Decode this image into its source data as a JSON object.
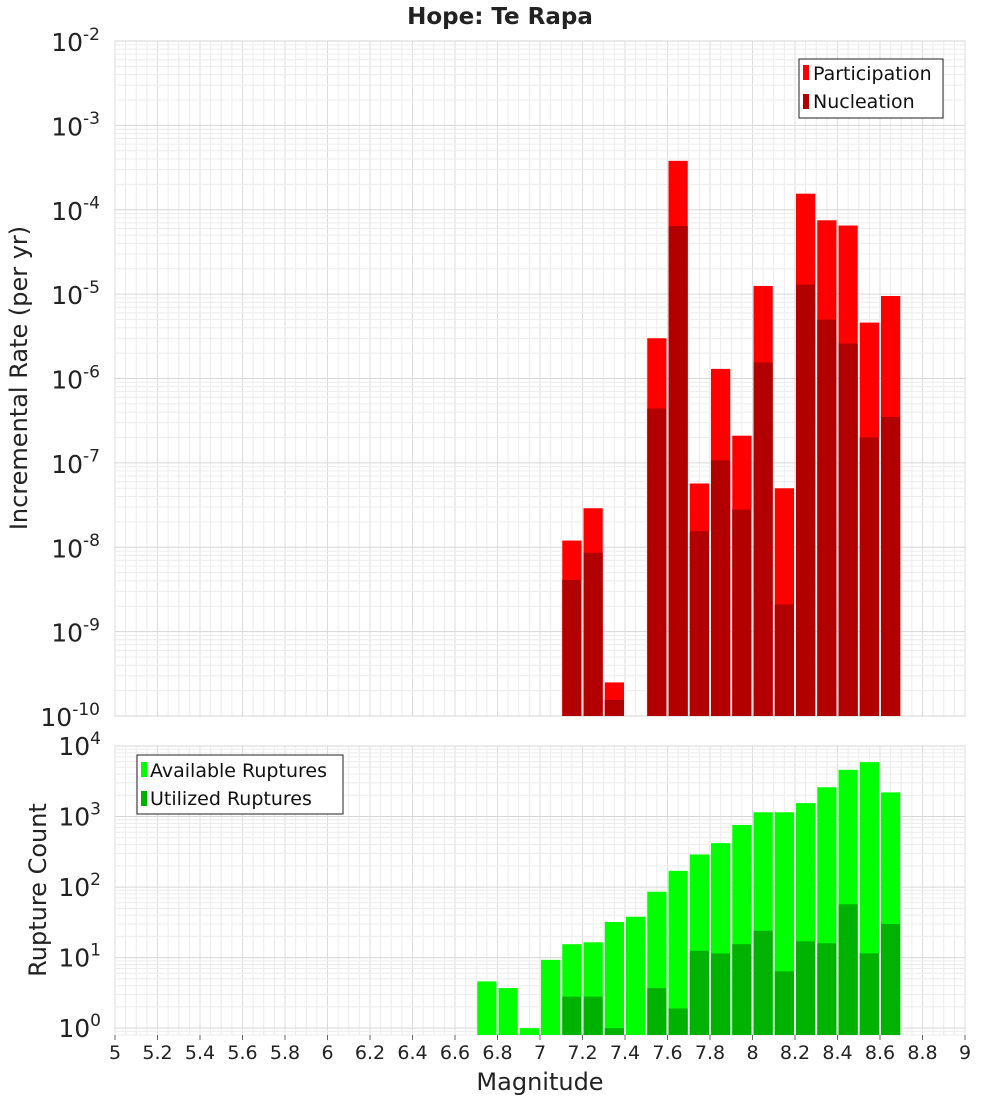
{
  "chart_data": [
    {
      "type": "bar",
      "title": "Hope: Te Rapa",
      "xlabel": "",
      "ylabel": "Incremental Rate (per yr)",
      "yscale": "log",
      "ylim": [
        1e-10,
        0.01
      ],
      "xlim": [
        5,
        9
      ],
      "grid": true,
      "legend_position": "top-right",
      "bar_width": 0.1,
      "y_tick_labels": [
        {
          "base": "10",
          "exp": "-10"
        },
        {
          "base": "10",
          "exp": "-9"
        },
        {
          "base": "10",
          "exp": "-8"
        },
        {
          "base": "10",
          "exp": "-7"
        },
        {
          "base": "10",
          "exp": "-6"
        },
        {
          "base": "10",
          "exp": "-5"
        },
        {
          "base": "10",
          "exp": "-4"
        },
        {
          "base": "10",
          "exp": "-3"
        },
        {
          "base": "10",
          "exp": "-2"
        }
      ],
      "series": [
        {
          "name": "Participation",
          "color": "#ff0000",
          "points": [
            [
              7.15,
              1.2e-08
            ],
            [
              7.25,
              2.9e-08
            ],
            [
              7.35,
              2.5e-10
            ],
            [
              7.55,
              3e-06
            ],
            [
              7.65,
              0.00038
            ],
            [
              7.75,
              5.7e-08
            ],
            [
              7.85,
              1.3e-06
            ],
            [
              7.95,
              2.1e-07
            ],
            [
              8.05,
              1.25e-05
            ],
            [
              8.15,
              5e-08
            ],
            [
              8.25,
              0.000155
            ],
            [
              8.35,
              7.5e-05
            ],
            [
              8.45,
              6.5e-05
            ],
            [
              8.55,
              4.6e-06
            ],
            [
              8.65,
              9.5e-06
            ]
          ]
        },
        {
          "name": "Nucleation",
          "color": "#b20000",
          "points": [
            [
              7.15,
              4.1e-09
            ],
            [
              7.25,
              8.6e-09
            ],
            [
              7.35,
              1.55e-10
            ],
            [
              7.55,
              4.4e-07
            ],
            [
              7.65,
              6.4e-05
            ],
            [
              7.75,
              1.55e-08
            ],
            [
              7.85,
              1.07e-07
            ],
            [
              7.95,
              2.8e-08
            ],
            [
              8.05,
              1.55e-06
            ],
            [
              8.15,
              2.1e-09
            ],
            [
              8.25,
              1.3e-05
            ],
            [
              8.35,
              5e-06
            ],
            [
              8.45,
              2.6e-06
            ],
            [
              8.55,
              2e-07
            ],
            [
              8.65,
              3.5e-07
            ]
          ]
        }
      ]
    },
    {
      "type": "bar",
      "title": "",
      "xlabel": "Magnitude",
      "ylabel": "Rupture Count",
      "yscale": "log",
      "ylim": [
        0.8,
        10000
      ],
      "xlim": [
        5,
        9
      ],
      "grid": true,
      "legend_position": "top-left",
      "bar_width": 0.1,
      "x_tick_labels": [
        "5",
        "5.2",
        "5.4",
        "5.6",
        "5.8",
        "6",
        "6.2",
        "6.4",
        "6.6",
        "6.8",
        "7",
        "7.2",
        "7.4",
        "7.6",
        "7.8",
        "8",
        "8.2",
        "8.4",
        "8.6",
        "8.8",
        "9"
      ],
      "y_tick_labels": [
        {
          "base": "10",
          "exp": "0"
        },
        {
          "base": "10",
          "exp": "1"
        },
        {
          "base": "10",
          "exp": "2"
        },
        {
          "base": "10",
          "exp": "3"
        },
        {
          "base": "10",
          "exp": "4"
        }
      ],
      "series": [
        {
          "name": "Available Ruptures",
          "color": "#00ff00",
          "points": [
            [
              6.75,
              4.6
            ],
            [
              6.85,
              3.7
            ],
            [
              6.95,
              1.0
            ],
            [
              7.05,
              9.3
            ],
            [
              7.15,
              15.5
            ],
            [
              7.25,
              16.5
            ],
            [
              7.35,
              32
            ],
            [
              7.45,
              38
            ],
            [
              7.55,
              86
            ],
            [
              7.65,
              170
            ],
            [
              7.75,
              290
            ],
            [
              7.85,
              420
            ],
            [
              7.95,
              760
            ],
            [
              8.05,
              1150
            ],
            [
              8.15,
              1150
            ],
            [
              8.25,
              1550
            ],
            [
              8.35,
              2600
            ],
            [
              8.45,
              4600
            ],
            [
              8.55,
              5900
            ],
            [
              8.65,
              2200
            ]
          ]
        },
        {
          "name": "Utilized Ruptures",
          "color": "#00b200",
          "points": [
            [
              7.15,
              2.8
            ],
            [
              7.25,
              2.8
            ],
            [
              7.35,
              1.0
            ],
            [
              7.55,
              3.7
            ],
            [
              7.65,
              1.9
            ],
            [
              7.75,
              12.5
            ],
            [
              7.85,
              11.5
            ],
            [
              7.95,
              15.5
            ],
            [
              8.05,
              24
            ],
            [
              8.15,
              6.4
            ],
            [
              8.25,
              17
            ],
            [
              8.35,
              16
            ],
            [
              8.45,
              57
            ],
            [
              8.55,
              11.5
            ],
            [
              8.65,
              30
            ]
          ]
        }
      ]
    }
  ]
}
